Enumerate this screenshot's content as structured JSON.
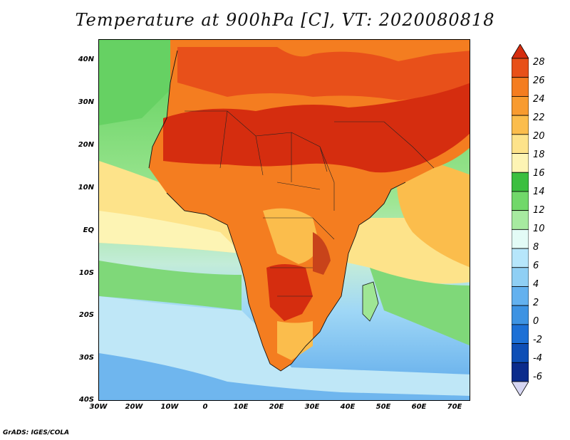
{
  "title": "Temperature at 900hPa [C], VT: 2020080818",
  "credit": "GrADS: IGES/COLA",
  "map": {
    "variable": "Temperature",
    "level": "900hPa",
    "units": "C",
    "valid_time": "2020080818",
    "lat_range": [
      -40,
      45
    ],
    "lon_range": [
      -30,
      75
    ],
    "lat_ticks": [
      "40N",
      "30N",
      "20N",
      "10N",
      "EQ",
      "10S",
      "20S",
      "30S",
      "40S"
    ],
    "lon_ticks": [
      "30W",
      "20W",
      "10W",
      "0",
      "10E",
      "20E",
      "30E",
      "40E",
      "50E",
      "60E",
      "70E"
    ]
  },
  "colorbar": {
    "levels": [
      "28",
      "26",
      "24",
      "22",
      "20",
      "18",
      "16",
      "14",
      "12",
      "10",
      "8",
      "6",
      "4",
      "2",
      "0",
      "-2",
      "-4",
      "-6"
    ],
    "colors_top_to_bottom": [
      "#d52d0f",
      "#e85018",
      "#f47d20",
      "#f89b2f",
      "#fbbd4c",
      "#fde38a",
      "#fdf4b4",
      "#3bbf3f",
      "#71d86a",
      "#a7eaa0",
      "#e3fbf6",
      "#b6e6fb",
      "#8fcff4",
      "#63b1ef",
      "#3d93e3",
      "#1c70d6",
      "#0e4fb6",
      "#0b2c8c",
      "#d6d6f2"
    ]
  }
}
